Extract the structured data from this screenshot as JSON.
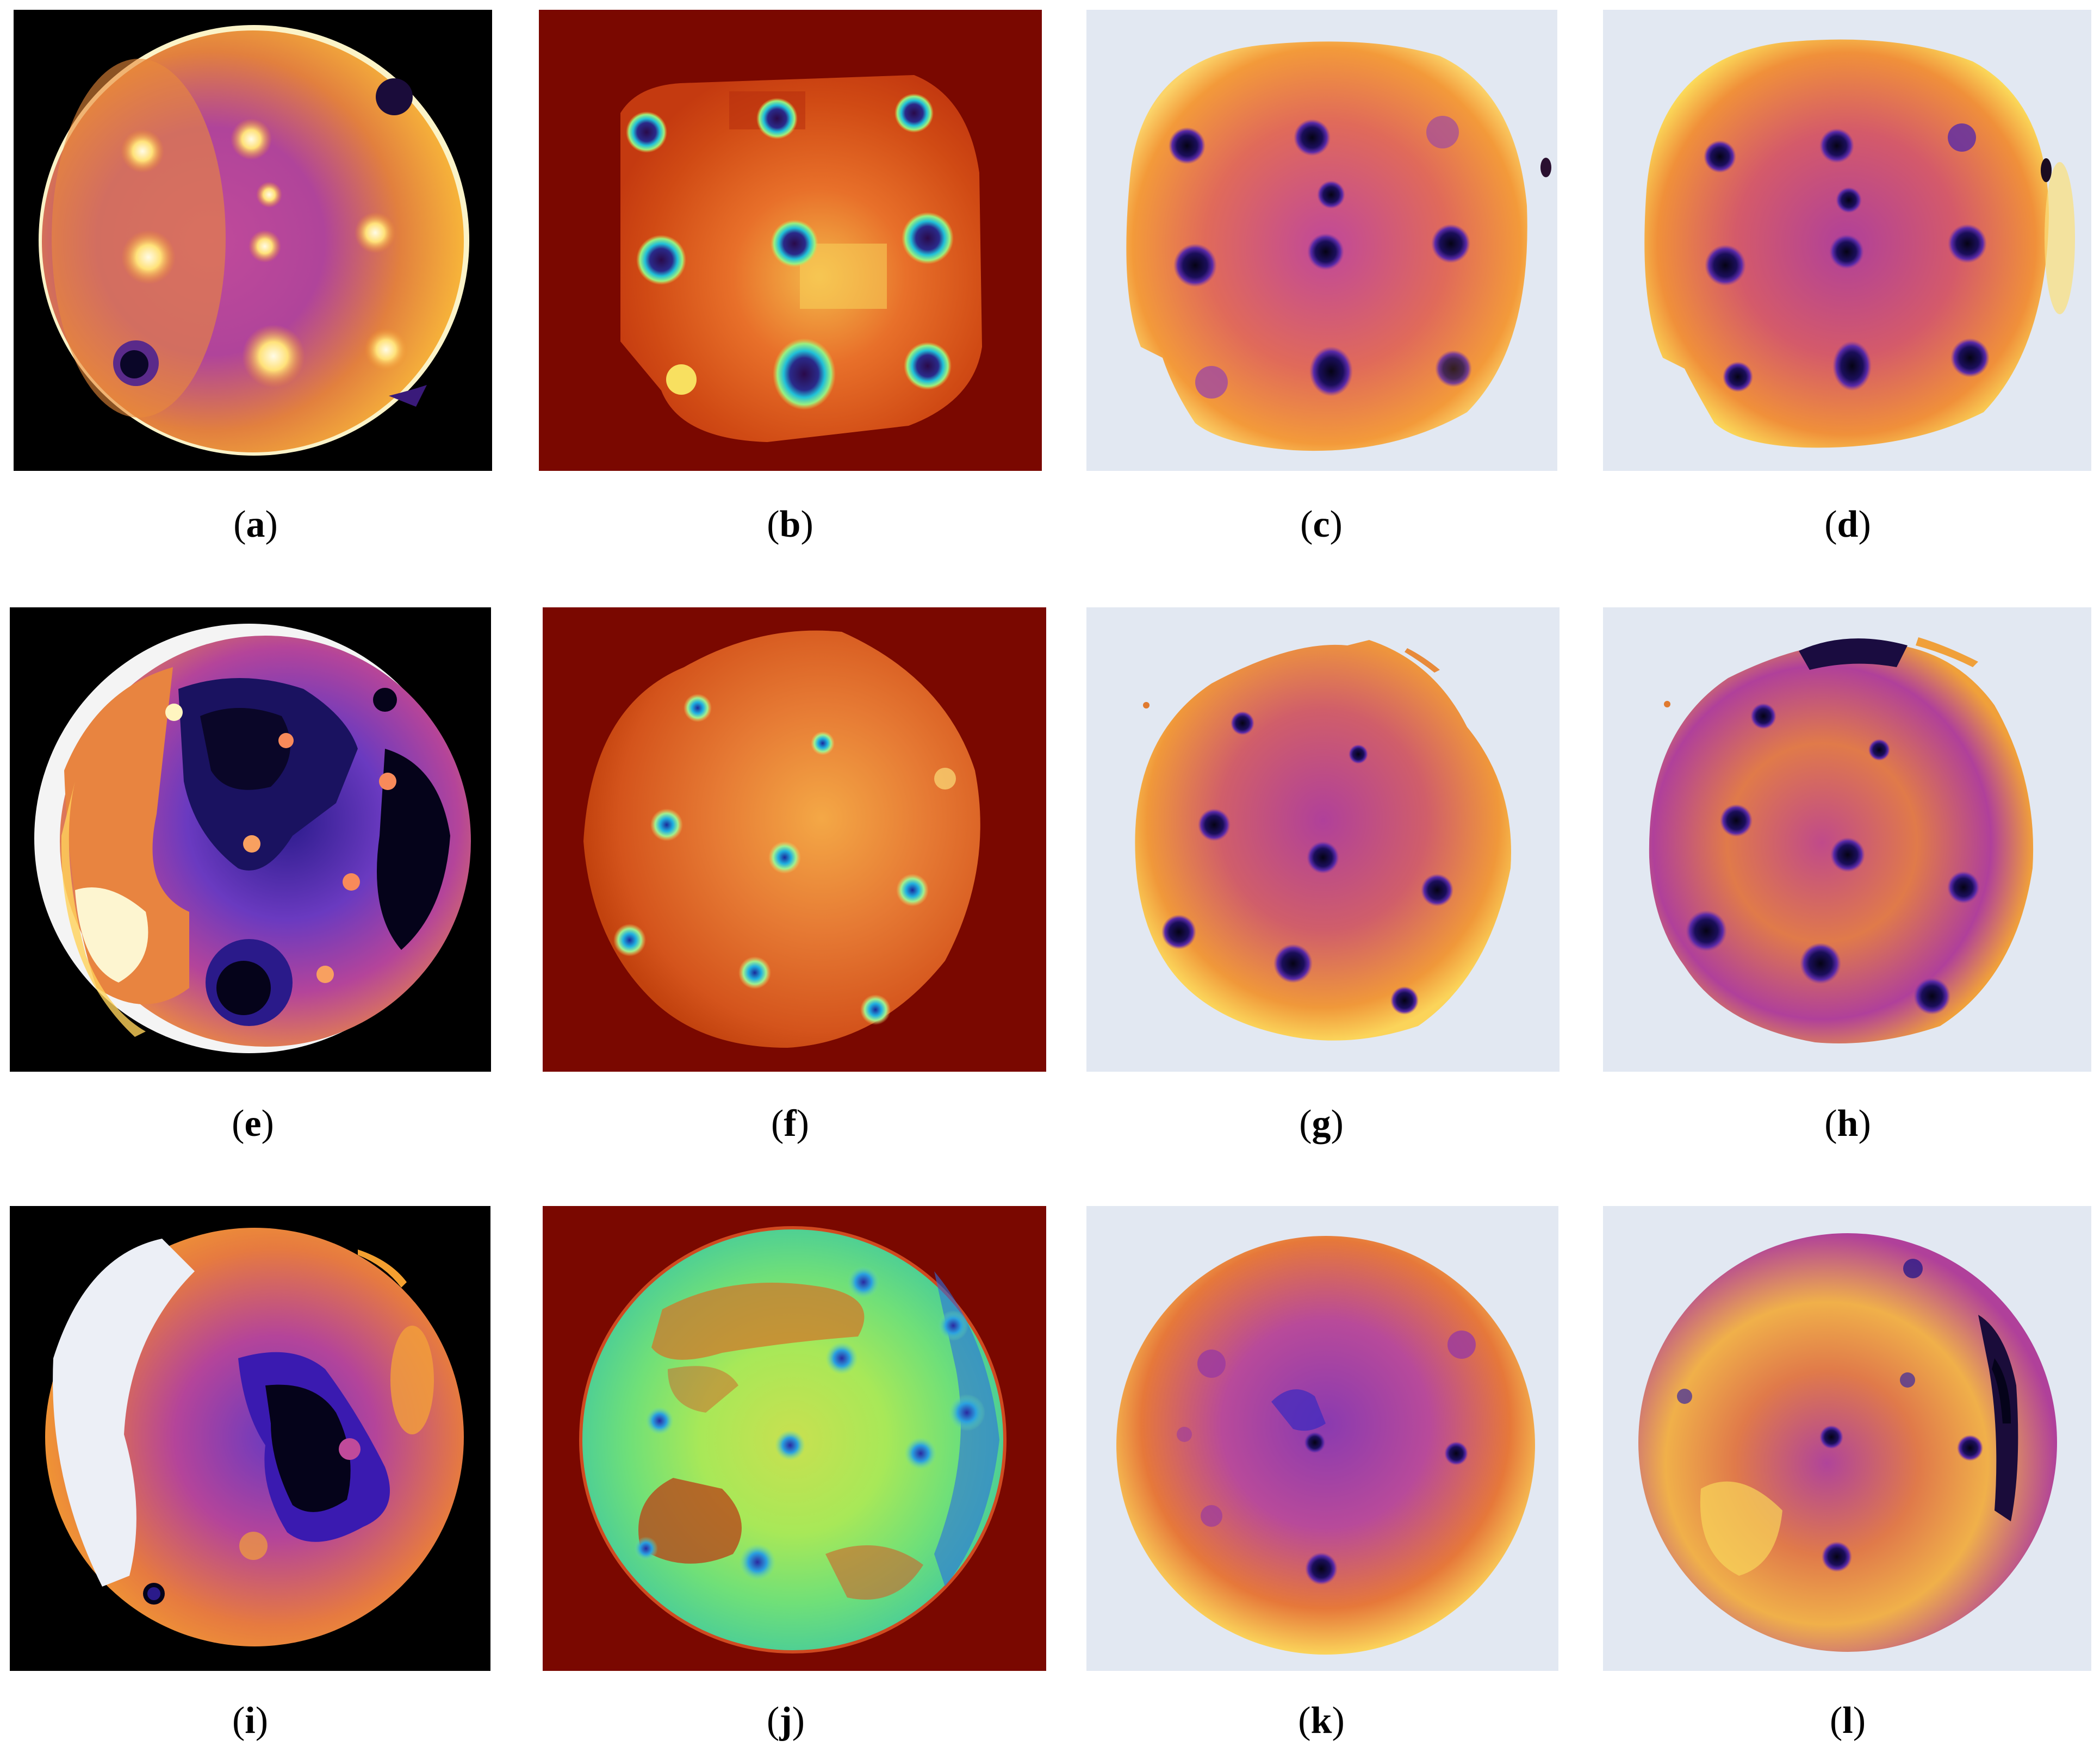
{
  "figure": {
    "panels": [
      {
        "id": "a",
        "caption_open": "(",
        "caption_letter": "a",
        "caption_close": ")",
        "colormap": "inferno-dark-background"
      },
      {
        "id": "b",
        "caption_open": "(",
        "caption_letter": "b",
        "caption_close": ")",
        "colormap": "jet-dark-red-background"
      },
      {
        "id": "c",
        "caption_open": "(",
        "caption_letter": "c",
        "caption_close": ")",
        "colormap": "plasma-light-background"
      },
      {
        "id": "d",
        "caption_open": "(",
        "caption_letter": "d",
        "caption_close": ")",
        "colormap": "plasma-light-background"
      },
      {
        "id": "e",
        "caption_open": "(",
        "caption_letter": "e",
        "caption_close": ")",
        "colormap": "inferno-dark-background"
      },
      {
        "id": "f",
        "caption_open": "(",
        "caption_letter": "f",
        "caption_close": ")",
        "colormap": "jet-dark-red-background"
      },
      {
        "id": "g",
        "caption_open": "(",
        "caption_letter": "g",
        "caption_close": ")",
        "colormap": "plasma-light-background"
      },
      {
        "id": "h",
        "caption_open": "(",
        "caption_letter": "h",
        "caption_close": ")",
        "colormap": "plasma-light-background"
      },
      {
        "id": "i",
        "caption_open": "(",
        "caption_letter": "i",
        "caption_close": ")",
        "colormap": "inferno-dark-background"
      },
      {
        "id": "j",
        "caption_open": "(",
        "caption_letter": "j",
        "caption_close": ")",
        "colormap": "jet-dark-red-background"
      },
      {
        "id": "k",
        "caption_open": "(",
        "caption_letter": "k",
        "caption_close": ")",
        "colormap": "plasma-light-background"
      },
      {
        "id": "l",
        "caption_open": "(",
        "caption_letter": "l",
        "caption_close": ")",
        "colormap": "plasma-light-background"
      }
    ]
  }
}
